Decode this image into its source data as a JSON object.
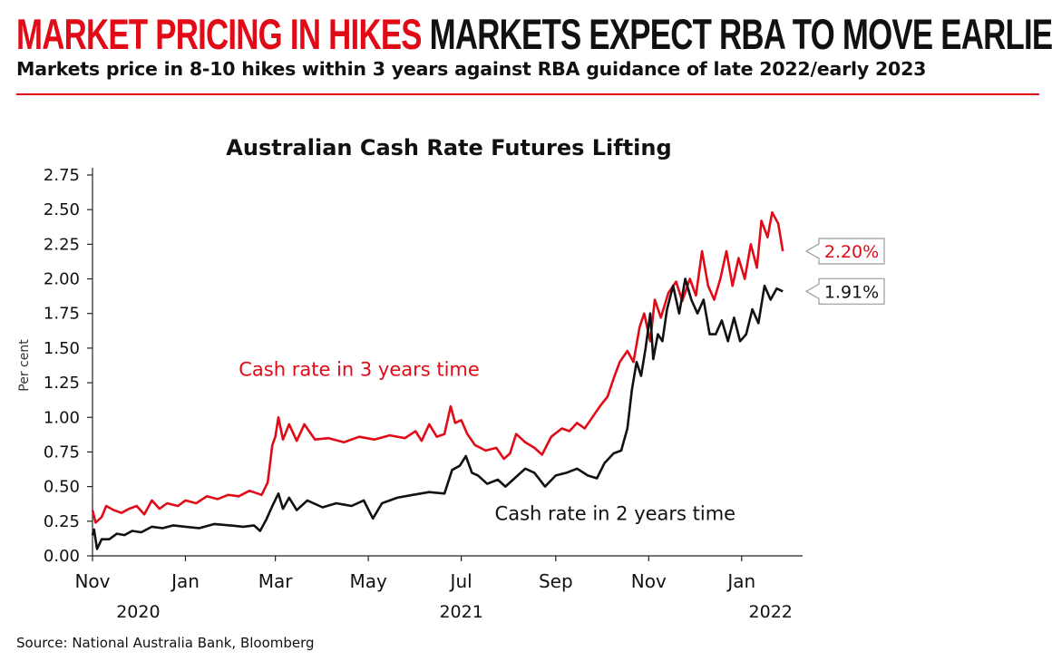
{
  "header": {
    "headline_red": "MARKET PRICING IN HIKES",
    "headline_black": "MARKETS EXPECT RBA TO MOVE EARLIER",
    "subtitle": "Markets price in 8-10 hikes within 3 years against RBA guidance of late 2022/early 2023",
    "accent_color": "#e10b17"
  },
  "source": "Source: National Australia Bank, Bloomberg",
  "chart_data": {
    "type": "line",
    "title": "Australian Cash Rate Futures Lifting",
    "ylabel": "Per cent",
    "xlabel": "",
    "ylim": [
      0,
      2.75
    ],
    "yticks": [
      "0.00",
      "0.25",
      "0.50",
      "0.75",
      "1.00",
      "1.25",
      "1.50",
      "1.75",
      "2.00",
      "2.25",
      "2.50",
      "2.75"
    ],
    "x_month_ticks": [
      {
        "label": "Nov",
        "date": "2020-11-01"
      },
      {
        "label": "Jan",
        "date": "2021-01-01"
      },
      {
        "label": "Mar",
        "date": "2021-03-01"
      },
      {
        "label": "May",
        "date": "2021-05-01"
      },
      {
        "label": "Jul",
        "date": "2021-07-01"
      },
      {
        "label": "Sep",
        "date": "2021-09-01"
      },
      {
        "label": "Nov",
        "date": "2021-11-01"
      },
      {
        "label": "Jan",
        "date": "2022-01-01"
      }
    ],
    "x_year_labels": [
      {
        "label": "2020",
        "date": "2020-12-01"
      },
      {
        "label": "2021",
        "date": "2021-07-01"
      },
      {
        "label": "2022",
        "date": "2022-01-20"
      }
    ],
    "grid": false,
    "series": [
      {
        "name": "Cash rate in 3 years time",
        "color": "#e10b17",
        "end_label": "2.20%",
        "points": [
          [
            "2020-11-01",
            0.33
          ],
          [
            "2020-11-03",
            0.24
          ],
          [
            "2020-11-07",
            0.28
          ],
          [
            "2020-11-10",
            0.36
          ],
          [
            "2020-11-15",
            0.33
          ],
          [
            "2020-11-20",
            0.31
          ],
          [
            "2020-11-25",
            0.34
          ],
          [
            "2020-11-30",
            0.36
          ],
          [
            "2020-12-05",
            0.3
          ],
          [
            "2020-12-10",
            0.4
          ],
          [
            "2020-12-15",
            0.34
          ],
          [
            "2020-12-20",
            0.38
          ],
          [
            "2020-12-27",
            0.36
          ],
          [
            "2021-01-01",
            0.4
          ],
          [
            "2021-01-08",
            0.38
          ],
          [
            "2021-01-15",
            0.43
          ],
          [
            "2021-01-22",
            0.41
          ],
          [
            "2021-01-29",
            0.44
          ],
          [
            "2021-02-05",
            0.43
          ],
          [
            "2021-02-12",
            0.47
          ],
          [
            "2021-02-20",
            0.44
          ],
          [
            "2021-02-24",
            0.53
          ],
          [
            "2021-02-27",
            0.8
          ],
          [
            "2021-03-01",
            0.86
          ],
          [
            "2021-03-03",
            1.0
          ],
          [
            "2021-03-06",
            0.84
          ],
          [
            "2021-03-10",
            0.95
          ],
          [
            "2021-03-15",
            0.83
          ],
          [
            "2021-03-20",
            0.95
          ],
          [
            "2021-03-27",
            0.84
          ],
          [
            "2021-04-05",
            0.85
          ],
          [
            "2021-04-15",
            0.82
          ],
          [
            "2021-04-25",
            0.86
          ],
          [
            "2021-05-05",
            0.84
          ],
          [
            "2021-05-15",
            0.87
          ],
          [
            "2021-05-25",
            0.85
          ],
          [
            "2021-06-01",
            0.9
          ],
          [
            "2021-06-05",
            0.83
          ],
          [
            "2021-06-10",
            0.95
          ],
          [
            "2021-06-15",
            0.86
          ],
          [
            "2021-06-20",
            0.88
          ],
          [
            "2021-06-24",
            1.08
          ],
          [
            "2021-06-27",
            0.96
          ],
          [
            "2021-07-01",
            0.98
          ],
          [
            "2021-07-05",
            0.88
          ],
          [
            "2021-07-10",
            0.8
          ],
          [
            "2021-07-17",
            0.76
          ],
          [
            "2021-07-24",
            0.78
          ],
          [
            "2021-07-29",
            0.7
          ],
          [
            "2021-08-02",
            0.74
          ],
          [
            "2021-08-06",
            0.88
          ],
          [
            "2021-08-12",
            0.82
          ],
          [
            "2021-08-18",
            0.78
          ],
          [
            "2021-08-23",
            0.73
          ],
          [
            "2021-08-29",
            0.86
          ],
          [
            "2021-09-05",
            0.92
          ],
          [
            "2021-09-10",
            0.9
          ],
          [
            "2021-09-15",
            0.96
          ],
          [
            "2021-09-20",
            0.92
          ],
          [
            "2021-09-25",
            1.0
          ],
          [
            "2021-09-30",
            1.08
          ],
          [
            "2021-10-05",
            1.15
          ],
          [
            "2021-10-09",
            1.28
          ],
          [
            "2021-10-13",
            1.4
          ],
          [
            "2021-10-18",
            1.48
          ],
          [
            "2021-10-22",
            1.4
          ],
          [
            "2021-10-26",
            1.65
          ],
          [
            "2021-10-29",
            1.75
          ],
          [
            "2021-11-02",
            1.55
          ],
          [
            "2021-11-05",
            1.85
          ],
          [
            "2021-11-09",
            1.72
          ],
          [
            "2021-11-14",
            1.9
          ],
          [
            "2021-11-19",
            1.98
          ],
          [
            "2021-11-23",
            1.84
          ],
          [
            "2021-11-28",
            2.0
          ],
          [
            "2021-12-02",
            1.88
          ],
          [
            "2021-12-06",
            2.2
          ],
          [
            "2021-12-10",
            1.95
          ],
          [
            "2021-12-14",
            1.85
          ],
          [
            "2021-12-18",
            2.0
          ],
          [
            "2021-12-22",
            2.2
          ],
          [
            "2021-12-26",
            1.95
          ],
          [
            "2021-12-30",
            2.15
          ],
          [
            "2022-01-03",
            2.0
          ],
          [
            "2022-01-07",
            2.25
          ],
          [
            "2022-01-11",
            2.08
          ],
          [
            "2022-01-14",
            2.42
          ],
          [
            "2022-01-18",
            2.3
          ],
          [
            "2022-01-21",
            2.48
          ],
          [
            "2022-01-25",
            2.4
          ],
          [
            "2022-01-28",
            2.2
          ]
        ]
      },
      {
        "name": "Cash rate in 2 years time",
        "color": "#111111",
        "end_label": "1.91%",
        "points": [
          [
            "2020-11-01",
            0.15
          ],
          [
            "2020-11-02",
            0.19
          ],
          [
            "2020-11-04",
            0.05
          ],
          [
            "2020-11-07",
            0.12
          ],
          [
            "2020-11-12",
            0.12
          ],
          [
            "2020-11-17",
            0.16
          ],
          [
            "2020-11-22",
            0.15
          ],
          [
            "2020-11-27",
            0.18
          ],
          [
            "2020-12-03",
            0.17
          ],
          [
            "2020-12-10",
            0.21
          ],
          [
            "2020-12-17",
            0.2
          ],
          [
            "2020-12-24",
            0.22
          ],
          [
            "2021-01-01",
            0.21
          ],
          [
            "2021-01-10",
            0.2
          ],
          [
            "2021-01-20",
            0.23
          ],
          [
            "2021-01-30",
            0.22
          ],
          [
            "2021-02-08",
            0.21
          ],
          [
            "2021-02-15",
            0.22
          ],
          [
            "2021-02-19",
            0.18
          ],
          [
            "2021-02-23",
            0.26
          ],
          [
            "2021-02-27",
            0.36
          ],
          [
            "2021-03-03",
            0.45
          ],
          [
            "2021-03-06",
            0.34
          ],
          [
            "2021-03-10",
            0.42
          ],
          [
            "2021-03-15",
            0.33
          ],
          [
            "2021-03-22",
            0.4
          ],
          [
            "2021-04-01",
            0.35
          ],
          [
            "2021-04-10",
            0.38
          ],
          [
            "2021-04-20",
            0.36
          ],
          [
            "2021-04-28",
            0.4
          ],
          [
            "2021-05-04",
            0.27
          ],
          [
            "2021-05-10",
            0.38
          ],
          [
            "2021-05-20",
            0.42
          ],
          [
            "2021-05-30",
            0.44
          ],
          [
            "2021-06-10",
            0.46
          ],
          [
            "2021-06-20",
            0.45
          ],
          [
            "2021-06-25",
            0.62
          ],
          [
            "2021-06-30",
            0.65
          ],
          [
            "2021-07-04",
            0.72
          ],
          [
            "2021-07-08",
            0.6
          ],
          [
            "2021-07-12",
            0.58
          ],
          [
            "2021-07-18",
            0.52
          ],
          [
            "2021-07-25",
            0.55
          ],
          [
            "2021-07-30",
            0.5
          ],
          [
            "2021-08-05",
            0.56
          ],
          [
            "2021-08-12",
            0.63
          ],
          [
            "2021-08-18",
            0.6
          ],
          [
            "2021-08-25",
            0.5
          ],
          [
            "2021-09-01",
            0.58
          ],
          [
            "2021-09-08",
            0.6
          ],
          [
            "2021-09-15",
            0.63
          ],
          [
            "2021-09-22",
            0.58
          ],
          [
            "2021-09-28",
            0.56
          ],
          [
            "2021-10-03",
            0.67
          ],
          [
            "2021-10-09",
            0.74
          ],
          [
            "2021-10-14",
            0.76
          ],
          [
            "2021-10-18",
            0.92
          ],
          [
            "2021-10-21",
            1.2
          ],
          [
            "2021-10-24",
            1.4
          ],
          [
            "2021-10-27",
            1.3
          ],
          [
            "2021-10-30",
            1.5
          ],
          [
            "2021-11-02",
            1.75
          ],
          [
            "2021-11-04",
            1.42
          ],
          [
            "2021-11-07",
            1.6
          ],
          [
            "2021-11-10",
            1.55
          ],
          [
            "2021-11-13",
            1.78
          ],
          [
            "2021-11-17",
            1.95
          ],
          [
            "2021-11-21",
            1.75
          ],
          [
            "2021-11-25",
            2.0
          ],
          [
            "2021-11-29",
            1.85
          ],
          [
            "2021-12-03",
            1.75
          ],
          [
            "2021-12-07",
            1.85
          ],
          [
            "2021-12-11",
            1.6
          ],
          [
            "2021-12-15",
            1.6
          ],
          [
            "2021-12-19",
            1.7
          ],
          [
            "2021-12-23",
            1.55
          ],
          [
            "2021-12-27",
            1.72
          ],
          [
            "2021-12-31",
            1.55
          ],
          [
            "2022-01-04",
            1.6
          ],
          [
            "2022-01-08",
            1.78
          ],
          [
            "2022-01-12",
            1.68
          ],
          [
            "2022-01-16",
            1.95
          ],
          [
            "2022-01-20",
            1.85
          ],
          [
            "2022-01-24",
            1.93
          ],
          [
            "2022-01-28",
            1.91
          ]
        ]
      }
    ],
    "annotations": [
      {
        "text": "Cash rate in 3 years time",
        "color": "#e10b17",
        "anchor_date": "2021-04-25",
        "anchor_value": 1.3
      },
      {
        "text": "Cash rate in 2 years time",
        "color": "#111111",
        "anchor_date": "2021-10-10",
        "anchor_value": 0.26
      }
    ]
  }
}
